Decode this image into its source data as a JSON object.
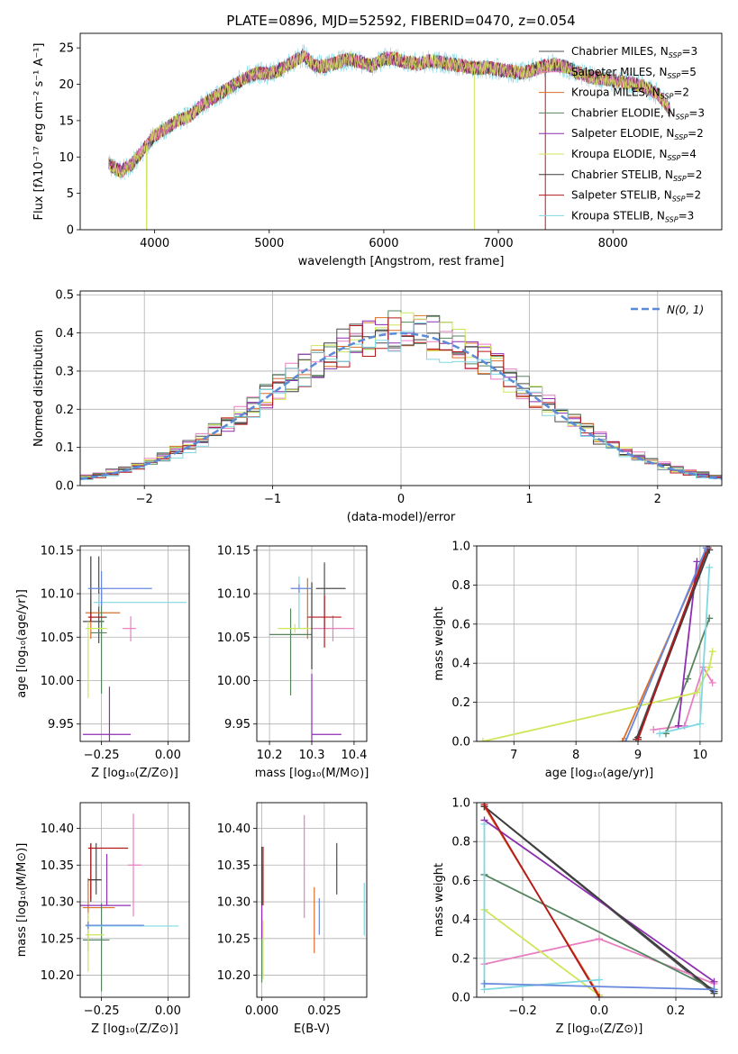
{
  "figure_title": "PLATE=0896, MJD=52592, FIBERID=0470, z=0.054",
  "colors": [
    "#4d4d4d",
    "#e77fc1",
    "#d96f28",
    "#55845f",
    "#8d2fb0",
    "#cfe55a",
    "#3d3d3d",
    "#b3181c",
    "#80d8e3",
    "#6688dd"
  ],
  "chart_data": [
    {
      "id": "spectrum",
      "type": "line",
      "xlabel": "wavelength [Angstrom, rest frame]",
      "ylabel": "Flux [fλ10⁻¹⁷ erg cm⁻² s⁻¹ A⁻¹]",
      "xlim": [
        3350,
        8950
      ],
      "ylim": [
        0,
        27
      ],
      "xticks": [
        4000,
        5000,
        6000,
        7000,
        8000
      ],
      "yticks": [
        0,
        5,
        10,
        15,
        20,
        25
      ],
      "grid": false,
      "legend_position": "upper right",
      "continuum": {
        "x": [
          3600,
          3700,
          3800,
          3900,
          4000,
          4100,
          4200,
          4300,
          4400,
          4500,
          4600,
          4700,
          4800,
          4900,
          5000,
          5100,
          5200,
          5300,
          5400,
          5500,
          5600,
          5700,
          5800,
          5900,
          6000,
          6100,
          6200,
          6300,
          6400,
          6500,
          6600,
          6700,
          6800,
          6900,
          7000,
          7100,
          7200,
          7300,
          7400,
          7500,
          7600,
          7700,
          7800,
          7900,
          8000,
          8100,
          8200,
          8300,
          8400,
          8500
        ],
        "y": [
          9,
          8,
          9,
          11,
          13,
          14,
          15,
          15.5,
          17,
          18,
          19,
          20,
          21,
          21.5,
          21.5,
          22,
          23,
          24,
          22.5,
          22.5,
          23,
          23.5,
          23,
          22.5,
          23.5,
          23.5,
          23,
          22.8,
          23.2,
          23,
          22.7,
          22.5,
          22.2,
          22.3,
          22,
          21.8,
          21.5,
          22,
          22.5,
          22.7,
          22.3,
          21.5,
          21,
          20.8,
          20.5,
          20.2,
          20,
          19.5,
          18.5,
          16.5
        ]
      },
      "dips": [
        {
          "x": 3930,
          "y": 0
        },
        {
          "x": 6790,
          "y": 0
        },
        {
          "x": 7410,
          "y": 0
        }
      ],
      "series": [
        {
          "name": "Chabrier MILES, N",
          "sub": "SSP",
          "suffix": "=3"
        },
        {
          "name": "Salpeter MILES, N",
          "sub": "SSP",
          "suffix": "=5"
        },
        {
          "name": "Kroupa MILES, N",
          "sub": "SSP",
          "suffix": "=2"
        },
        {
          "name": "Chabrier ELODIE, N",
          "sub": "SSP",
          "suffix": "=3"
        },
        {
          "name": "Salpeter ELODIE, N",
          "sub": "SSP",
          "suffix": "=2"
        },
        {
          "name": "Kroupa ELODIE, N",
          "sub": "SSP",
          "suffix": "=4"
        },
        {
          "name": "Chabrier STELIB, N",
          "sub": "SSP",
          "suffix": "=2"
        },
        {
          "name": "Salpeter STELIB, N",
          "sub": "SSP",
          "suffix": "=2"
        },
        {
          "name": "Kroupa STELIB, N",
          "sub": "SSP",
          "suffix": "=3"
        }
      ]
    },
    {
      "id": "residuals",
      "type": "histogram",
      "xlabel": "(data-model)/error",
      "ylabel": "Normed distribution",
      "xlim": [
        -2.5,
        2.5
      ],
      "ylim": [
        0,
        0.51
      ],
      "xticks": [
        -2,
        -1,
        0,
        1,
        2
      ],
      "yticks": [
        0.0,
        0.1,
        0.2,
        0.3,
        0.4,
        0.5
      ],
      "grid": true,
      "legend_position": "upper right",
      "reference": {
        "name": "N(0, 1)"
      },
      "bin_width": 0.1
    },
    {
      "id": "z_age",
      "type": "errorbar",
      "xlabel": "Z [log₁₀(Z/Z⊙)]",
      "ylabel": "age  [log₁₀(age/yr)]",
      "xlim": [
        -0.33,
        0.08
      ],
      "ylim": [
        9.93,
        10.155
      ],
      "xticks": [
        -0.25,
        0.0
      ],
      "yticks": [
        9.95,
        10.0,
        10.05,
        10.1,
        10.15
      ],
      "grid": true,
      "points": [
        {
          "x": -0.26,
          "y": 10.068,
          "xerr": [
            0.06,
            0.02
          ],
          "yerr": [
            0.025,
            0.075
          ]
        },
        {
          "x": -0.14,
          "y": 10.06,
          "xerr": [
            0.03,
            0.02
          ],
          "yerr": [
            0.015,
            0.014
          ]
        },
        {
          "x": -0.29,
          "y": 10.078,
          "xerr": [
            0.02,
            0.11
          ],
          "yerr": [
            0.03,
            0.015
          ]
        },
        {
          "x": -0.25,
          "y": 10.055,
          "xerr": [
            0.04,
            0.02
          ],
          "yerr": [
            0.07,
            0.05
          ]
        },
        {
          "x": -0.22,
          "y": 9.938,
          "xerr": [
            0.1,
            0.08
          ],
          "yerr": [
            0.01,
            0.055
          ]
        },
        {
          "x": -0.3,
          "y": 10.06,
          "xerr": [
            0.01,
            0.07
          ],
          "yerr": [
            0.08,
            0.008
          ]
        },
        {
          "x": -0.29,
          "y": 10.073,
          "xerr": [
            0.01,
            0.06
          ],
          "yerr": [
            0.005,
            0.07
          ]
        },
        {
          "x": -0.29,
          "y": 10.073,
          "xerr": [
            0.01,
            0.05
          ],
          "yerr": [
            0.005,
            0.005
          ]
        },
        {
          "x": -0.26,
          "y": 10.09,
          "xerr": [
            0.02,
            0.33
          ],
          "yerr": [
            0.005,
            0.01
          ]
        },
        {
          "x": -0.25,
          "y": 10.106,
          "xerr": [
            0.05,
            0.19
          ],
          "yerr": [
            0.02,
            0.02
          ]
        }
      ]
    },
    {
      "id": "mass_age",
      "type": "errorbar",
      "xlabel": "mass [log₁₀(M/M⊙)]",
      "ylabel": "",
      "xlim": [
        10.17,
        10.43
      ],
      "ylim": [
        9.93,
        10.155
      ],
      "xticks": [
        10.2,
        10.3,
        10.4
      ],
      "yticks": [
        9.95,
        10.0,
        10.05,
        10.1,
        10.15
      ],
      "grid": true,
      "points": [
        {
          "x": 10.33,
          "y": 10.106,
          "xerr": [
            0.02,
            0.05
          ],
          "yerr": [
            0.045,
            0.03
          ]
        },
        {
          "x": 10.35,
          "y": 10.06,
          "xerr": [
            0.05,
            0.05
          ],
          "yerr": [
            0.015,
            0.015
          ]
        },
        {
          "x": 10.29,
          "y": 10.078,
          "xerr": [
            0.0,
            0.0
          ],
          "yerr": [
            0.03,
            0.04
          ]
        },
        {
          "x": 10.25,
          "y": 10.053,
          "xerr": [
            0.05,
            0.05
          ],
          "yerr": [
            0.07,
            0.03
          ]
        },
        {
          "x": 10.3,
          "y": 9.938,
          "xerr": [
            0.0,
            0.07
          ],
          "yerr": [
            0.01,
            0.07
          ]
        },
        {
          "x": 10.26,
          "y": 10.06,
          "xerr": [
            0.04,
            0.04
          ],
          "yerr": [
            0.005,
            0.005
          ]
        },
        {
          "x": 10.3,
          "y": 10.073,
          "xerr": [
            0.0,
            0.0
          ],
          "yerr": [
            0.06,
            0.04
          ]
        },
        {
          "x": 10.33,
          "y": 10.073,
          "xerr": [
            0.04,
            0.04
          ],
          "yerr": [
            0.035,
            0.025
          ]
        },
        {
          "x": 10.27,
          "y": 10.09,
          "xerr": [
            0.0,
            0.0
          ],
          "yerr": [
            0.03,
            0.03
          ]
        },
        {
          "x": 10.27,
          "y": 10.106,
          "xerr": [
            0.02,
            0.03
          ],
          "yerr": [
            0.005,
            0.005
          ]
        }
      ]
    },
    {
      "id": "age_weight",
      "type": "line",
      "xlabel": "age  [log₁₀(age/yr)]",
      "ylabel": "mass weight",
      "xlim": [
        6.4,
        10.35
      ],
      "ylim": [
        0,
        1.0
      ],
      "xticks": [
        7,
        8,
        9,
        10
      ],
      "yticks": [
        0.0,
        0.2,
        0.4,
        0.6,
        0.8,
        1.0
      ],
      "grid": true,
      "series": [
        {
          "x": [
            8.97,
            10.12
          ],
          "y": [
            0.01,
            0.98
          ]
        },
        {
          "x": [
            9.25,
            9.75,
            10.05,
            10.2
          ],
          "y": [
            0.06,
            0.08,
            0.38,
            0.3
          ]
        },
        {
          "x": [
            8.75,
            10.13
          ],
          "y": [
            0.0,
            0.99
          ]
        },
        {
          "x": [
            9.45,
            9.8,
            10.15
          ],
          "y": [
            0.04,
            0.32,
            0.63
          ]
        },
        {
          "x": [
            9.65,
            9.95
          ],
          "y": [
            0.08,
            0.92
          ]
        },
        {
          "x": [
            6.5,
            9.95,
            10.15,
            10.2
          ],
          "y": [
            0.0,
            0.25,
            0.38,
            0.46
          ]
        },
        {
          "x": [
            9.0,
            10.15
          ],
          "y": [
            0.02,
            0.98
          ]
        },
        {
          "x": [
            9.0,
            10.12
          ],
          "y": [
            0.01,
            0.99
          ]
        },
        {
          "x": [
            9.35,
            10.0,
            10.15
          ],
          "y": [
            0.04,
            0.09,
            0.89
          ]
        },
        {
          "x": [
            8.8,
            10.1
          ],
          "y": [
            0.0,
            0.99
          ]
        }
      ]
    },
    {
      "id": "z_mass",
      "type": "errorbar",
      "xlabel": "Z [log₁₀(Z/Z⊙)]",
      "ylabel": "mass [log₁₀(M/M⊙)]",
      "xlim": [
        -0.33,
        0.08
      ],
      "ylim": [
        10.17,
        10.435
      ],
      "xticks": [
        -0.25,
        0.0
      ],
      "yticks": [
        10.2,
        10.25,
        10.3,
        10.35,
        10.4
      ],
      "grid": true,
      "points": [
        {
          "x": -0.27,
          "y": 10.33,
          "xerr": [
            0.03,
            0.02
          ],
          "yerr": [
            0.02,
            0.05
          ]
        },
        {
          "x": -0.13,
          "y": 10.35,
          "xerr": [
            0.02,
            0.03
          ],
          "yerr": [
            0.07,
            0.07
          ]
        },
        {
          "x": -0.3,
          "y": 10.292,
          "xerr": [
            0.02,
            0.1
          ],
          "yerr": [
            0.06,
            0.04
          ]
        },
        {
          "x": -0.25,
          "y": 10.248,
          "xerr": [
            0.07,
            0.03
          ],
          "yerr": [
            0.07,
            0.05
          ]
        },
        {
          "x": -0.23,
          "y": 10.295,
          "xerr": [
            0.1,
            0.09
          ],
          "yerr": [
            0.0,
            0.07
          ]
        },
        {
          "x": -0.3,
          "y": 10.255,
          "xerr": [
            0.01,
            0.06
          ],
          "yerr": [
            0.05,
            0.03
          ]
        },
        {
          "x": -0.29,
          "y": 10.33,
          "xerr": [
            0.01,
            0.04
          ],
          "yerr": [
            0.03,
            0.05
          ]
        },
        {
          "x": -0.29,
          "y": 10.373,
          "xerr": [
            0.01,
            0.14
          ],
          "yerr": [
            0.07,
            0.005
          ]
        },
        {
          "x": -0.3,
          "y": 10.267,
          "xerr": [
            0.01,
            0.34
          ],
          "yerr": [
            0.005,
            0.005
          ]
        },
        {
          "x": -0.3,
          "y": 10.268,
          "xerr": [
            0.01,
            0.21
          ],
          "yerr": [
            0.005,
            0.005
          ]
        }
      ]
    },
    {
      "id": "ebv_mass",
      "type": "errorbar",
      "xlabel": "E(B-V)",
      "ylabel": "",
      "xlim": [
        -0.002,
        0.042
      ],
      "ylim": [
        10.17,
        10.435
      ],
      "xticks": [
        0.0,
        0.025
      ],
      "yticks": [
        10.2,
        10.25,
        10.3,
        10.35,
        10.4
      ],
      "grid": true,
      "points": [
        {
          "x": 0.03,
          "y": 10.345,
          "yerr": [
            0.035,
            0.035
          ]
        },
        {
          "x": 0.017,
          "y": 10.348,
          "yerr": [
            0.07,
            0.07
          ]
        },
        {
          "x": 0.021,
          "y": 10.275,
          "yerr": [
            0.045,
            0.045
          ]
        },
        {
          "x": 0.0,
          "y": 10.24,
          "yerr": [
            0.05,
            0.05
          ]
        },
        {
          "x": 0.0,
          "y": 10.3,
          "yerr": [
            0.05,
            0.05
          ]
        },
        {
          "x": 0.0005,
          "y": 10.235,
          "yerr": [
            0.04,
            0.04
          ]
        },
        {
          "x": 0.0,
          "y": 10.335,
          "yerr": [
            0.04,
            0.04
          ]
        },
        {
          "x": 0.0005,
          "y": 10.335,
          "yerr": [
            0.04,
            0.04
          ]
        },
        {
          "x": 0.041,
          "y": 10.29,
          "yerr": [
            0.036,
            0.036
          ]
        },
        {
          "x": 0.023,
          "y": 10.28,
          "yerr": [
            0.025,
            0.025
          ]
        }
      ]
    },
    {
      "id": "z_weight",
      "type": "line",
      "xlabel": "Z [log₁₀(Z/Z⊙)]",
      "ylabel": "mass weight",
      "xlim": [
        -0.32,
        0.32
      ],
      "ylim": [
        0,
        1.0
      ],
      "xticks": [
        -0.2,
        0.0,
        0.2
      ],
      "yticks": [
        0.0,
        0.2,
        0.4,
        0.6,
        0.8,
        1.0
      ],
      "grid": true,
      "series": [
        {
          "x": [
            -0.3,
            0.3
          ],
          "y": [
            0.98,
            0.02
          ]
        },
        {
          "x": [
            -0.3,
            0.0,
            0.3
          ],
          "y": [
            0.17,
            0.3,
            0.07
          ]
        },
        {
          "x": [
            -0.3,
            0.0
          ],
          "y": [
            0.98,
            0.01
          ]
        },
        {
          "x": [
            -0.3,
            0.3
          ],
          "y": [
            0.63,
            0.04
          ]
        },
        {
          "x": [
            -0.3,
            0.3
          ],
          "y": [
            0.91,
            0.08
          ]
        },
        {
          "x": [
            -0.3,
            0.0
          ],
          "y": [
            0.45,
            0.01
          ]
        },
        {
          "x": [
            -0.3,
            0.3
          ],
          "y": [
            0.98,
            0.03
          ]
        },
        {
          "x": [
            -0.3,
            0.0
          ],
          "y": [
            0.99,
            0.0
          ]
        },
        {
          "x": [
            -0.3,
            -0.3,
            0.0
          ],
          "y": [
            0.89,
            0.04,
            0.09
          ]
        },
        {
          "x": [
            -0.3,
            0.3
          ],
          "y": [
            0.07,
            0.04
          ]
        }
      ]
    }
  ]
}
